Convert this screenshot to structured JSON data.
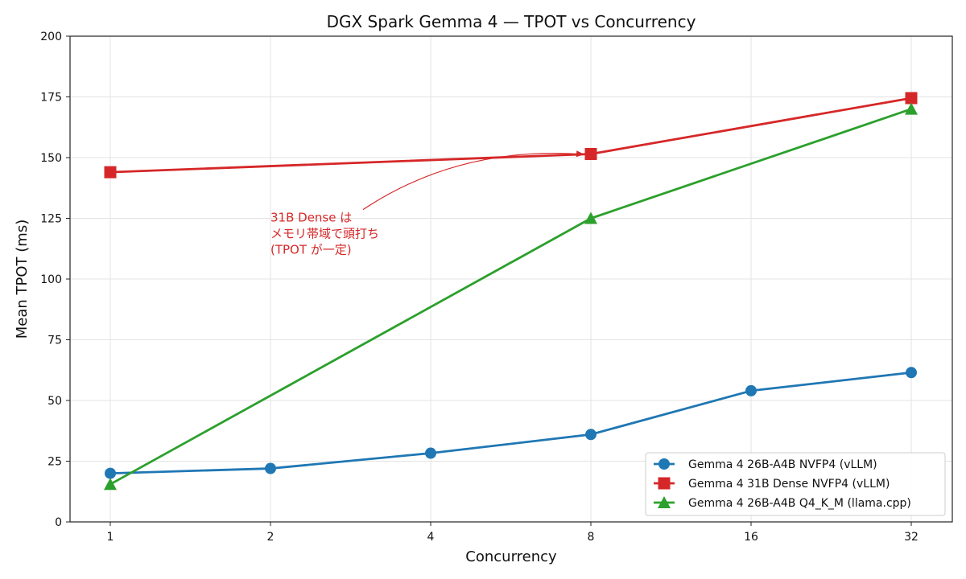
{
  "chart_data": {
    "type": "line",
    "title": "DGX Spark Gemma 4 — TPOT vs Concurrency",
    "xlabel": "Concurrency",
    "ylabel": "Mean TPOT (ms)",
    "x_scale": "log2",
    "x": [
      1,
      2,
      4,
      8,
      16,
      32
    ],
    "x_tick_labels": [
      "1",
      "2",
      "4",
      "8",
      "16",
      "32"
    ],
    "ylim": [
      0,
      200
    ],
    "y_ticks": [
      0,
      25,
      50,
      75,
      100,
      125,
      150,
      175,
      200
    ],
    "grid": true,
    "legend_position": "bottom-right",
    "series": [
      {
        "name": "Gemma 4 26B-A4B NVFP4 (vLLM)",
        "color": "#1f77b4",
        "marker": "circle",
        "x": [
          1,
          2,
          4,
          8,
          16,
          32
        ],
        "values": [
          20,
          22,
          28.3,
          36,
          54,
          61.5
        ]
      },
      {
        "name": "Gemma 4 31B Dense NVFP4 (vLLM)",
        "color": "#d62728",
        "marker": "square",
        "x": [
          1,
          8,
          32
        ],
        "values": [
          144,
          151.5,
          174.5
        ]
      },
      {
        "name": "Gemma 4 26B-A4B Q4_K_M (llama.cpp)",
        "color": "#2ca02c",
        "marker": "triangle",
        "x": [
          1,
          8,
          32
        ],
        "values": [
          15.5,
          125,
          170
        ]
      }
    ],
    "annotations": [
      {
        "lines": [
          "31B Dense は",
          "メモリ帯域で頭打ち",
          "(TPOT が一定)"
        ],
        "color": "#d62728",
        "text_at": {
          "x": 2,
          "y": 116
        },
        "arrow_to": {
          "x": 8,
          "y": 151.5
        }
      }
    ]
  }
}
